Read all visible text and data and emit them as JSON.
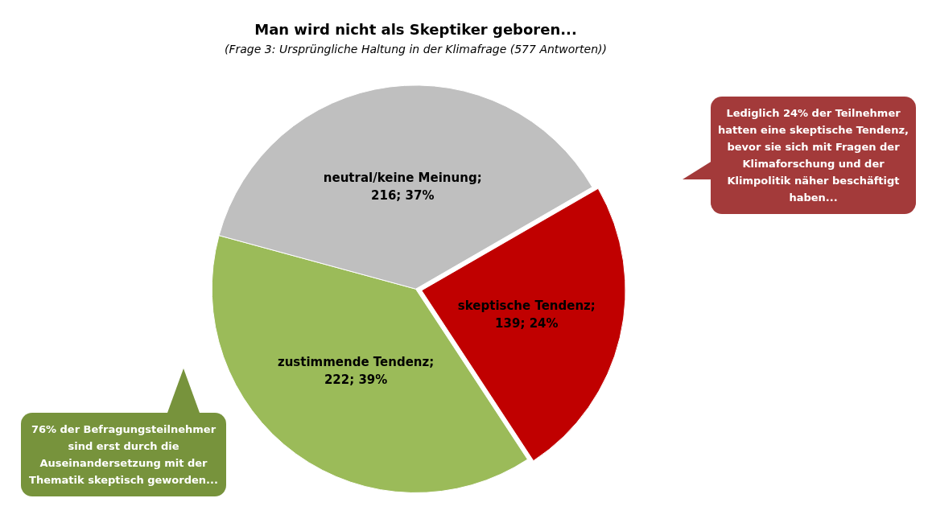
{
  "chart_data": {
    "type": "pie",
    "title": "Man wird nicht als Skeptiker geboren...",
    "subtitle": "(Frage 3: Ursprüngliche Haltung in der Klimafrage (577 Antworten))",
    "categories": [
      "skeptische Tendenz",
      "zustimmende Tendenz",
      "neutral/keine Meinung"
    ],
    "values": [
      139,
      222,
      216
    ],
    "colors": [
      "#c00000",
      "#9bbb59",
      "#bfbfbf"
    ],
    "value_labels": [
      "; 139; 24%",
      "; 222; 39%",
      "; 216; 37%"
    ],
    "legend": false,
    "annotations": [
      "Lediglich 24% der Teilnehmer hatten eine skeptische Tendenz, bevor sie sich mit Fragen der Klimaforschung und der Klimpolitik näher beschäftigt haben...",
      "76% der Befragungsteilnehmer sind erst durch die Auseinandersetzung mit der Thematik skeptisch geworden..."
    ]
  }
}
